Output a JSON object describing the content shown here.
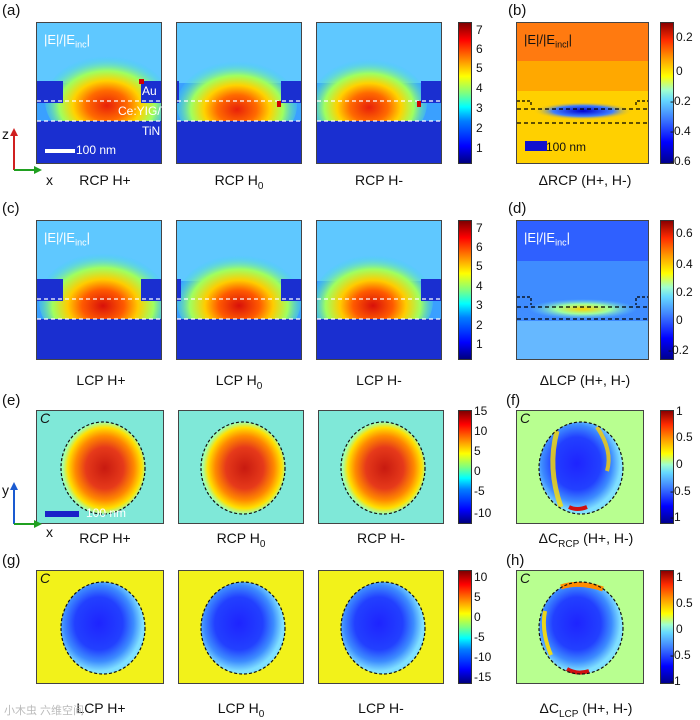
{
  "panels": {
    "a": "(a)",
    "b": "(b)",
    "c": "(c)",
    "d": "(d)",
    "e": "(e)",
    "f": "(f)",
    "g": "(g)",
    "h": "(h)"
  },
  "row_a": {
    "map_label": "|E|/|E",
    "map_label_sub": "inc",
    "map_label_end": "|",
    "layer_au": "Au",
    "layer_ceyig": "Ce:YIG/YIG",
    "layer_tin": "TiN",
    "scale": "100 nm",
    "axis_z": "z",
    "axis_x": "x",
    "captions": [
      "RCP H+",
      "RCP H",
      "RCP H-"
    ],
    "caption_sub": "0",
    "colorbar_ticks": [
      "7",
      "6",
      "5",
      "4",
      "3",
      "2",
      "1"
    ]
  },
  "panel_b": {
    "map_label": "|E|/|E",
    "map_label_sub": "incl",
    "map_label_end": "|",
    "scale": "100 nm",
    "caption": "ΔRCP (H+, H-)",
    "colorbar_ticks": [
      "0.2",
      "0",
      "-0.2",
      "-0.4",
      "-0.6"
    ]
  },
  "row_c": {
    "map_label": "|E|/|E",
    "map_label_sub": "inc",
    "map_label_end": "|",
    "captions": [
      "LCP H+",
      "LCP H",
      "LCP H-"
    ],
    "caption_sub": "0",
    "colorbar_ticks": [
      "7",
      "6",
      "5",
      "4",
      "3",
      "2",
      "1"
    ]
  },
  "panel_d": {
    "map_label": "|E|/|E",
    "map_label_sub": "inc",
    "map_label_end": "|",
    "caption": "ΔLCP (H+, H-)",
    "colorbar_ticks": [
      "0.6",
      "0.4",
      "0.2",
      "0",
      "-0.2"
    ]
  },
  "row_e": {
    "corner": "C",
    "axis_y": "y",
    "axis_x": "x",
    "scale": "100 nm",
    "captions": [
      "RCP H+",
      "RCP H",
      "RCP H-"
    ],
    "caption_sub": "0",
    "colorbar_ticks": [
      "15",
      "10",
      "5",
      "0",
      "-5",
      "-10"
    ]
  },
  "panel_f": {
    "corner": "C",
    "caption_main": "ΔC",
    "caption_sub": "RCP",
    "caption_end": " (H+, H-)",
    "colorbar_ticks": [
      "1",
      "0.5",
      "0",
      "-0.5",
      "-1"
    ]
  },
  "row_g": {
    "corner": "C",
    "captions": [
      "LCP H+",
      "LCP H",
      "LCP H-"
    ],
    "caption_sub": "0",
    "colorbar_ticks": [
      "10",
      "5",
      "0",
      "-5",
      "-10",
      "-15"
    ]
  },
  "panel_h": {
    "corner": "C",
    "caption_main": "ΔC",
    "caption_sub": "LCP",
    "caption_end": " (H+, H-)",
    "colorbar_ticks": [
      "1",
      "0.5",
      "0",
      "-0.5",
      "-1"
    ]
  },
  "watermark": "小木虫 六维空间"
}
